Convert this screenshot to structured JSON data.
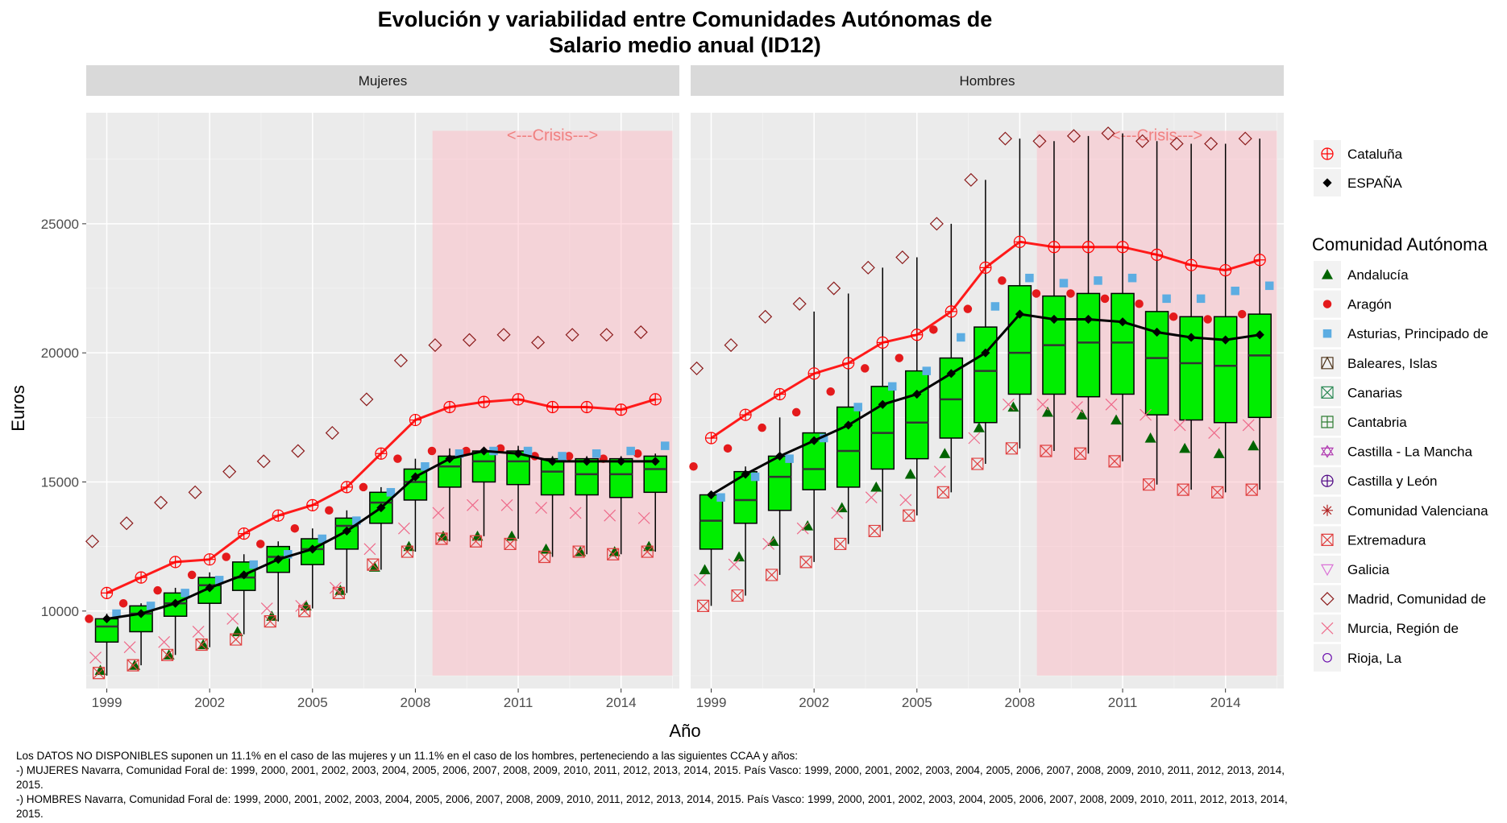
{
  "chart_data": {
    "type": "boxplot",
    "title_line1": "Evolución y variabilidad entre Comunidades Autónomas de",
    "title_line2": "Salario medio anual (ID12)",
    "xlabel": "Año",
    "ylabel": "Euros",
    "xlim": [
      1998.4,
      2015.7
    ],
    "ylim": [
      7000,
      29300
    ],
    "x_ticks": [
      1999,
      2002,
      2005,
      2008,
      2011,
      2014
    ],
    "y_ticks": [
      10000,
      15000,
      20000,
      25000
    ],
    "grid": true,
    "crisis": {
      "label": "<---Crisis--->",
      "x_start": 2008.5,
      "x_end": 2015.5
    },
    "legend_top": [
      {
        "label": "Cataluña",
        "shape": "circle-plus",
        "color": "#ff0000"
      },
      {
        "label": "ESPAÑA",
        "shape": "diamond-filled",
        "color": "#000000"
      }
    ],
    "legend_title": "Comunidad Autónoma",
    "legend_ccaa": [
      {
        "label": "Andalucía",
        "shape": "triangle-filled",
        "color": "#006400"
      },
      {
        "label": "Aragón",
        "shape": "circle-filled",
        "color": "#e41a1c"
      },
      {
        "label": "Asturias, Principado de",
        "shape": "square-filled",
        "color": "#5dade2"
      },
      {
        "label": "Baleares, Islas",
        "shape": "square-triangle",
        "color": "#4d3319"
      },
      {
        "label": "Canarias",
        "shape": "square-x",
        "color": "#2e8b57"
      },
      {
        "label": "Cantabria",
        "shape": "square-plus",
        "color": "#2e7d32"
      },
      {
        "label": "Castilla - La Mancha",
        "shape": "star-david",
        "color": "#b03ab0"
      },
      {
        "label": "Castilla y León",
        "shape": "circle-plus",
        "color": "#4b0082"
      },
      {
        "label": "Comunidad Valenciana",
        "shape": "asterisk",
        "color": "#b22222"
      },
      {
        "label": "Extremadura",
        "shape": "square-x",
        "color": "#e04040"
      },
      {
        "label": "Galicia",
        "shape": "triangle-down",
        "color": "#da70d6"
      },
      {
        "label": "Madrid, Comunidad de",
        "shape": "diamond",
        "color": "#8b1a1a"
      },
      {
        "label": "Murcia, Región de",
        "shape": "x",
        "color": "#ee6a8a"
      },
      {
        "label": "Rioja, La",
        "shape": "circle",
        "color": "#6a0dad"
      }
    ],
    "years": [
      1999,
      2000,
      2001,
      2002,
      2003,
      2004,
      2005,
      2006,
      2007,
      2008,
      2009,
      2010,
      2011,
      2012,
      2013,
      2014,
      2015
    ],
    "panels": [
      {
        "name": "Mujeres",
        "espana": [
          9700,
          9900,
          10300,
          10900,
          11400,
          12000,
          12400,
          13100,
          14000,
          15200,
          15900,
          16200,
          16100,
          15800,
          15800,
          15800,
          15800
        ],
        "cataluna": [
          10700,
          11300,
          11900,
          12000,
          13000,
          13700,
          14100,
          14800,
          16100,
          17400,
          17900,
          18100,
          18200,
          17900,
          17900,
          17800,
          18200
        ],
        "boxes": [
          {
            "q1": 8800,
            "median": 9400,
            "q3": 9700,
            "lo": 7500,
            "hi": 9900
          },
          {
            "q1": 9200,
            "median": 9900,
            "q3": 10200,
            "lo": 7900,
            "hi": 10300
          },
          {
            "q1": 9800,
            "median": 10300,
            "q3": 10700,
            "lo": 8300,
            "hi": 10900
          },
          {
            "q1": 10300,
            "median": 11000,
            "q3": 11300,
            "lo": 8600,
            "hi": 11500
          },
          {
            "q1": 10800,
            "median": 11300,
            "q3": 11900,
            "lo": 9100,
            "hi": 12200
          },
          {
            "q1": 11500,
            "median": 12100,
            "q3": 12500,
            "lo": 9600,
            "hi": 12700
          },
          {
            "q1": 11800,
            "median": 12400,
            "q3": 12800,
            "lo": 10100,
            "hi": 13200
          },
          {
            "q1": 12400,
            "median": 13300,
            "q3": 13600,
            "lo": 10700,
            "hi": 13900
          },
          {
            "q1": 13400,
            "median": 14200,
            "q3": 14600,
            "lo": 11600,
            "hi": 14800
          },
          {
            "q1": 14300,
            "median": 15000,
            "q3": 15500,
            "lo": 12300,
            "hi": 15900
          },
          {
            "q1": 14800,
            "median": 15600,
            "q3": 16000,
            "lo": 12700,
            "hi": 16300
          },
          {
            "q1": 15000,
            "median": 15800,
            "q3": 16200,
            "lo": 12900,
            "hi": 16300
          },
          {
            "q1": 14900,
            "median": 15800,
            "q3": 16200,
            "lo": 12800,
            "hi": 16400
          },
          {
            "q1": 14500,
            "median": 15400,
            "q3": 15900,
            "lo": 12100,
            "hi": 16000
          },
          {
            "q1": 14500,
            "median": 15300,
            "q3": 15900,
            "lo": 12200,
            "hi": 16000
          },
          {
            "q1": 14400,
            "median": 15300,
            "q3": 15900,
            "lo": 12200,
            "hi": 16000
          },
          {
            "q1": 14600,
            "median": 15500,
            "q3": 16000,
            "lo": 12300,
            "hi": 16100
          }
        ],
        "madrid": [
          12700,
          13400,
          14200,
          14600,
          15400,
          15800,
          16200,
          16900,
          18200,
          19700,
          20300,
          20500,
          20700,
          20400,
          20700,
          20700,
          20800
        ],
        "andalucia": [
          7700,
          7900,
          8300,
          8700,
          9200,
          9800,
          10200,
          10800,
          11700,
          12500,
          12900,
          12900,
          12900,
          12400,
          12300,
          12300,
          12500
        ],
        "extremadura": [
          7600,
          7900,
          8300,
          8700,
          8900,
          9600,
          10000,
          10700,
          11800,
          12300,
          12800,
          12700,
          12600,
          12100,
          12300,
          12200,
          12300
        ],
        "murcia": [
          8200,
          8600,
          8800,
          9200,
          9700,
          10100,
          10200,
          10900,
          12400,
          13200,
          13800,
          14100,
          14100,
          14000,
          13800,
          13700,
          13600
        ],
        "aragon": [
          9700,
          10300,
          10800,
          11400,
          12100,
          12600,
          13200,
          13900,
          14800,
          15900,
          16200,
          16200,
          16300,
          16000,
          16000,
          15900,
          16100
        ],
        "asturias": [
          9900,
          10200,
          10700,
          11200,
          11800,
          12200,
          12800,
          13500,
          14600,
          15600,
          16100,
          16200,
          16200,
          16000,
          16100,
          16200,
          16400
        ]
      },
      {
        "name": "Hombres",
        "espana": [
          14500,
          15300,
          16000,
          16600,
          17200,
          18000,
          18400,
          19200,
          20000,
          21500,
          21300,
          21300,
          21200,
          20800,
          20600,
          20500,
          20700
        ],
        "cataluna": [
          16700,
          17600,
          18400,
          19200,
          19600,
          20400,
          20700,
          21600,
          23300,
          24300,
          24100,
          24100,
          24100,
          23800,
          23400,
          23200,
          23600
        ],
        "boxes": [
          {
            "q1": 12400,
            "median": 13500,
            "q3": 14500,
            "lo": 10200,
            "hi": 14600
          },
          {
            "q1": 13400,
            "median": 14300,
            "q3": 15400,
            "lo": 10600,
            "hi": 15600
          },
          {
            "q1": 13900,
            "median": 15200,
            "q3": 16000,
            "lo": 11400,
            "hi": 17500
          },
          {
            "q1": 14700,
            "median": 15500,
            "q3": 16900,
            "lo": 11900,
            "hi": 21600
          },
          {
            "q1": 14800,
            "median": 16200,
            "q3": 17900,
            "lo": 12600,
            "hi": 22300
          },
          {
            "q1": 15500,
            "median": 16900,
            "q3": 18700,
            "lo": 13100,
            "hi": 23300
          },
          {
            "q1": 15900,
            "median": 17300,
            "q3": 19300,
            "lo": 13700,
            "hi": 23700
          },
          {
            "q1": 16700,
            "median": 18200,
            "q3": 19800,
            "lo": 14600,
            "hi": 25000
          },
          {
            "q1": 17300,
            "median": 19300,
            "q3": 21000,
            "lo": 15700,
            "hi": 26700
          },
          {
            "q1": 18400,
            "median": 20000,
            "q3": 22600,
            "lo": 16300,
            "hi": 28300
          },
          {
            "q1": 18400,
            "median": 20300,
            "q3": 22200,
            "lo": 16200,
            "hi": 28200
          },
          {
            "q1": 18300,
            "median": 20400,
            "q3": 22300,
            "lo": 16100,
            "hi": 28400
          },
          {
            "q1": 18400,
            "median": 20400,
            "q3": 22300,
            "lo": 15800,
            "hi": 28500
          },
          {
            "q1": 17600,
            "median": 19800,
            "q3": 21600,
            "lo": 14900,
            "hi": 28200
          },
          {
            "q1": 17400,
            "median": 19600,
            "q3": 21400,
            "lo": 14700,
            "hi": 28100
          },
          {
            "q1": 17300,
            "median": 19500,
            "q3": 21400,
            "lo": 14600,
            "hi": 28100
          },
          {
            "q1": 17500,
            "median": 19900,
            "q3": 21500,
            "lo": 14700,
            "hi": 28300
          }
        ],
        "madrid": [
          19400,
          20300,
          21400,
          21900,
          22500,
          23300,
          23700,
          25000,
          26700,
          28300,
          28200,
          28400,
          28500,
          28200,
          28100,
          28100,
          28300
        ],
        "andalucia": [
          11600,
          12100,
          12700,
          13300,
          14000,
          14800,
          15300,
          16100,
          17100,
          17900,
          17700,
          17600,
          17400,
          16700,
          16300,
          16100,
          16400
        ],
        "extremadura": [
          10200,
          10600,
          11400,
          11900,
          12600,
          13100,
          13700,
          14600,
          15700,
          16300,
          16200,
          16100,
          15800,
          14900,
          14700,
          14600,
          14700
        ],
        "murcia": [
          11200,
          11800,
          12600,
          13200,
          13800,
          14400,
          14300,
          15400,
          16700,
          18000,
          18000,
          17900,
          18000,
          17600,
          17200,
          16900,
          17200
        ],
        "aragon": [
          15600,
          16300,
          17100,
          17700,
          18500,
          19400,
          19800,
          20900,
          21700,
          22800,
          22300,
          22300,
          22100,
          21900,
          21400,
          21300,
          21500
        ],
        "asturias": [
          14400,
          15200,
          15900,
          16700,
          17900,
          18700,
          19300,
          20600,
          21800,
          22900,
          22700,
          22800,
          22900,
          22100,
          22100,
          22400,
          22600
        ]
      }
    ]
  },
  "caption": {
    "line1": "Los DATOS NO DISPONIBLES suponen un 11.1% en el caso de las mujeres y un 11.1% en el caso de los hombres, perteneciendo a las siguientes CCAA y años:",
    "line2": "-) MUJERES Navarra, Comunidad Foral de: 1999, 2000, 2001, 2002, 2003, 2004, 2005, 2006, 2007, 2008, 2009, 2010, 2011, 2012, 2013, 2014, 2015. País Vasco: 1999, 2000, 2001, 2002, 2003, 2004, 2005, 2006, 2007, 2008, 2009, 2010, 2011, 2012, 2013, 2014, 2015.",
    "line3": "-) HOMBRES Navarra, Comunidad Foral de: 1999, 2000, 2001, 2002, 2003, 2004, 2005, 2006, 2007, 2008, 2009, 2010, 2011, 2012, 2013, 2014, 2015. País Vasco: 1999, 2000, 2001, 2002, 2003, 2004, 2005, 2006, 2007, 2008, 2009, 2010, 2011, 2012, 2013, 2014, 2015."
  }
}
